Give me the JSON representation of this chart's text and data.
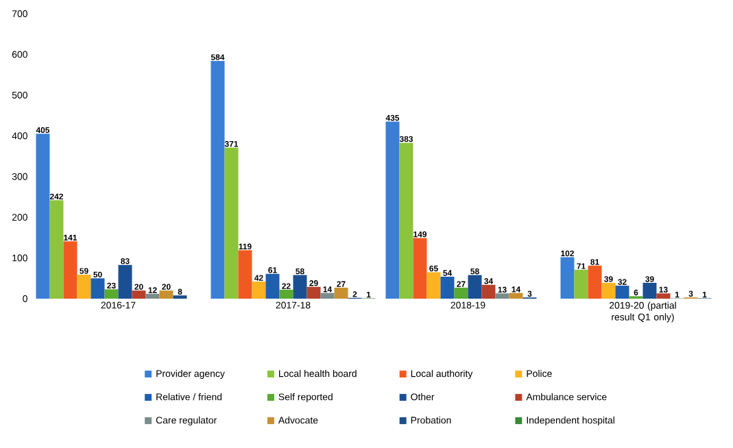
{
  "chart_data": {
    "type": "bar",
    "categories": [
      "2016-17",
      "2017-18",
      "2018-19",
      "2019-20 (partial result Q1 only)"
    ],
    "series": [
      {
        "name": "Provider agency",
        "color": "#3a7fd5",
        "values": [
          405,
          584,
          435,
          102
        ]
      },
      {
        "name": "Local health board",
        "color": "#8cc43c",
        "values": [
          242,
          371,
          383,
          71
        ]
      },
      {
        "name": "Local authority",
        "color": "#f05a22",
        "values": [
          141,
          119,
          149,
          81
        ]
      },
      {
        "name": "Police",
        "color": "#fbb321",
        "values": [
          59,
          42,
          65,
          39
        ]
      },
      {
        "name": "Relative / friend",
        "color": "#1f5fb0",
        "values": [
          50,
          61,
          54,
          32
        ]
      },
      {
        "name": "Self reported",
        "color": "#5aaa32",
        "values": [
          23,
          22,
          27,
          6
        ]
      },
      {
        "name": "Other",
        "color": "#1b4f93",
        "values": [
          83,
          58,
          58,
          39
        ]
      },
      {
        "name": "Ambulance service",
        "color": "#b8402a",
        "values": [
          20,
          29,
          34,
          13
        ]
      },
      {
        "name": "Care regulator",
        "color": "#7a8c8c",
        "values": [
          12,
          14,
          13,
          1
        ]
      },
      {
        "name": "Advocate",
        "color": "#c89030",
        "values": [
          20,
          27,
          14,
          3
        ]
      },
      {
        "name": "Probation",
        "color": "#1d4f8a",
        "values": [
          8,
          2,
          3,
          1
        ]
      },
      {
        "name": "Independent hospital",
        "color": "#3a8a3a",
        "values": [
          null,
          1,
          null,
          null
        ]
      }
    ],
    "ylim": [
      0,
      700
    ],
    "yticks": [
      0,
      100,
      200,
      300,
      400,
      500,
      600,
      700
    ],
    "data_labels": true,
    "legend": "bottom"
  }
}
